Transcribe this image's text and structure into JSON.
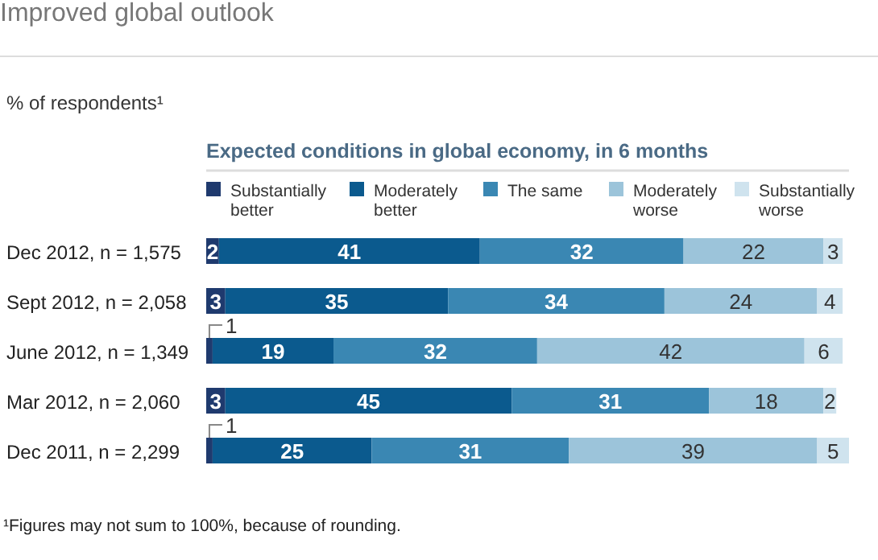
{
  "chart_data": {
    "type": "bar",
    "orientation": "horizontal",
    "stacked": true,
    "data_labels": true,
    "legend": "top",
    "tick_labels": "y",
    "title": "Improved global outlook",
    "subtitle": "% of respondents¹",
    "legend_title": "Expected conditions in global economy, in 6 months",
    "annotations": [
      "¹Figures may not sum to 100%, because of rounding."
    ],
    "xlim": [
      0,
      101
    ],
    "categories": [
      "Dec 2012, n = 1,575",
      "Sept 2012, n = 2,058",
      "June 2012, n = 1,349",
      "Mar 2012, n = 2,060",
      "Dec 2011, n = 2,299"
    ],
    "series": [
      {
        "name": "Substantially better",
        "color": "#1f3a6e",
        "values": [
          2,
          3,
          1,
          3,
          1
        ]
      },
      {
        "name": "Moderately better",
        "color": "#0b5a8e",
        "values": [
          41,
          35,
          19,
          45,
          25
        ]
      },
      {
        "name": "The same",
        "color": "#3a87b3",
        "values": [
          32,
          34,
          32,
          31,
          31
        ]
      },
      {
        "name": "Moderately worse",
        "color": "#9cc4da",
        "values": [
          22,
          24,
          42,
          18,
          39
        ]
      },
      {
        "name": "Substantially worse",
        "color": "#cfe3ee",
        "values": [
          3,
          4,
          6,
          2,
          5
        ]
      }
    ]
  }
}
